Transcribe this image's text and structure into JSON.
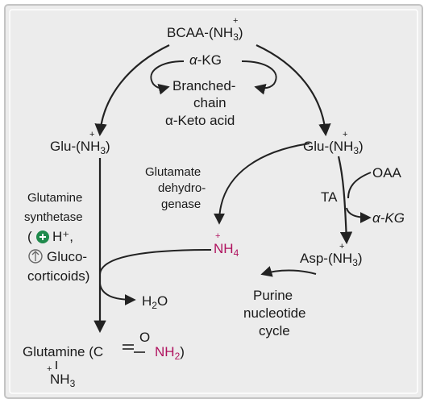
{
  "colors": {
    "panel": "#ececec",
    "border": "#c4c4c4",
    "ink": "#222222",
    "magenta": "#b0135f",
    "plus_badge": "#1f8a4c"
  },
  "nodes": {
    "bcaa": {
      "name": "BCAA-(",
      "n": "N",
      "h": "H",
      "three": "3",
      "plus": "+",
      "close": ")"
    },
    "akg_top": {
      "alpha": "α",
      "kg": "-KG"
    },
    "bckacid": {
      "line1": "Branched-",
      "line2": "chain",
      "line3": "α-Keto acid"
    },
    "glu_left": {
      "name": "Glu-(",
      "n": "N",
      "h": "H",
      "three": "3",
      "plus": "+",
      "close": ")"
    },
    "glu_right": {
      "name": "Glu-(",
      "n": "N",
      "h": "H",
      "three": "3",
      "plus": "+",
      "close": ")"
    },
    "gdh": {
      "line1": "Glutamate",
      "line2": "dehydro-",
      "line3": "genase"
    },
    "oaa": "OAA",
    "ta": "TA",
    "akg_right": "α-KG",
    "nh4": {
      "n": "N",
      "h": "H",
      "four": "4",
      "plus": "+"
    },
    "asp": {
      "name": "Asp-(",
      "n": "N",
      "h": "H",
      "three": "3",
      "plus": "+",
      "close": ")"
    },
    "purine": {
      "line1": "Purine",
      "line2": "nucleotide",
      "line3": "cycle"
    },
    "gs": {
      "line1": "Glutamine",
      "line2": "synthetase",
      "open": "(",
      "hplus": "H⁺,",
      "line4": "Gluco-",
      "line5": "corticoids)"
    },
    "water": {
      "h": "H",
      "two": "2",
      "o": "O"
    },
    "glutamine": {
      "name": "Glutamine (C",
      "o": "O",
      "nh": "NH",
      "two": "2",
      "close": ")",
      "bot_n": "N",
      "bot_h": "H",
      "bot_three": "3",
      "bot_plus": "+"
    }
  }
}
